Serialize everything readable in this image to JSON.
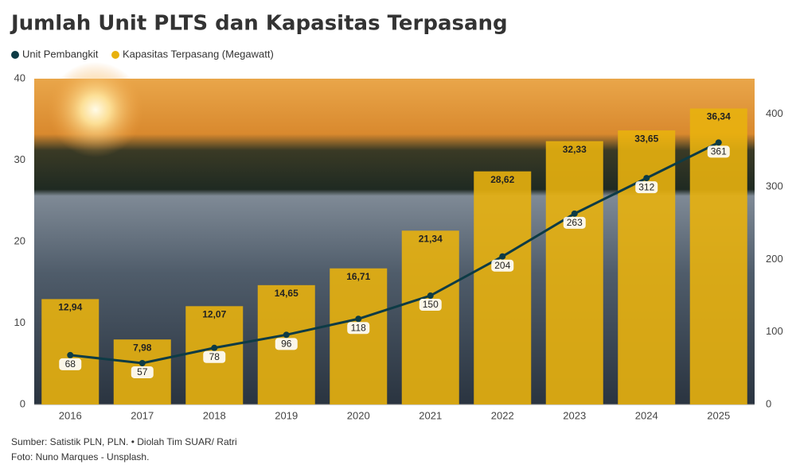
{
  "chart_data": {
    "type": "bar-line",
    "title": "Jumlah Unit PLTS dan Kapasitas Terpasang",
    "categories": [
      "2016",
      "2017",
      "2018",
      "2019",
      "2020",
      "2021",
      "2022",
      "2023",
      "2024",
      "2025"
    ],
    "series": [
      {
        "name": "Unit Pembangkit",
        "type": "line",
        "axis": "y2",
        "color": "#0d3b45",
        "values": [
          68,
          57,
          78,
          96,
          118,
          150,
          204,
          263,
          312,
          361
        ]
      },
      {
        "name": "Kapasitas Terpasang (Megawatt)",
        "type": "bar",
        "color": "#e8b10e",
        "values": [
          12.94,
          7.98,
          12.07,
          14.65,
          16.71,
          21.34,
          28.62,
          32.33,
          33.65,
          36.34
        ],
        "value_labels": [
          "12,94",
          "7,98",
          "12,07",
          "14,65",
          "16,71",
          "21,34",
          "28,62",
          "32,33",
          "33,65",
          "36,34"
        ]
      }
    ],
    "ylim": [
      0,
      40
    ],
    "yticks": [
      0,
      10,
      20,
      30,
      40
    ],
    "y2lim": [
      0,
      449
    ],
    "y2ticks": [
      0,
      100,
      200,
      300,
      400
    ],
    "source": "Sumber: Satistik PLN, PLN. • Diolah Tim SUAR/ Ratri",
    "credit": "Foto: Nuno Marques - Unsplash."
  }
}
